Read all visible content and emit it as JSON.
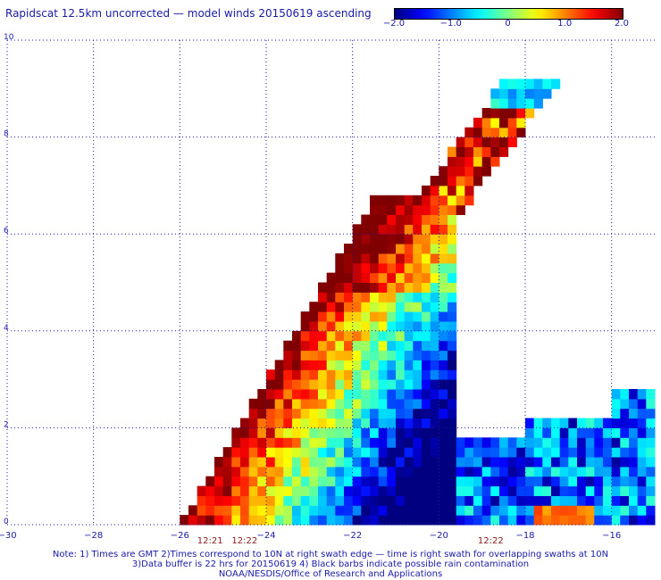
{
  "title": "Rapidscat 12.5km uncorrected — model winds 20150619 ascending",
  "colorbar": {
    "ticks": [
      {
        "value": -2.0,
        "label": "−2.0"
      },
      {
        "value": -1.0,
        "label": "−1.0"
      },
      {
        "value": 0,
        "label": "0"
      },
      {
        "value": 1.0,
        "label": "1.0"
      },
      {
        "value": 2.0,
        "label": "2.0"
      }
    ],
    "range": [
      -2.0,
      2.0
    ]
  },
  "notes": {
    "line1": "Note: 1) Times are GMT 2)Times correspond to 10N at right swath edge — time is right swath for overlapping swaths at 10N",
    "line2": "3)Data buffer is 22 hrs for 20150619 4) Black barbs indicate possible rain contamination",
    "line3": "NOAA/NESDIS/Office of Research and Applications"
  },
  "chart_data": {
    "type": "heatmap",
    "title": "Rapidscat 12.5km uncorrected — model winds 20150619 ascending",
    "xlabel": "",
    "ylabel": "",
    "xlim": [
      -30,
      -15
    ],
    "ylim": [
      0,
      10
    ],
    "grid": true,
    "x_ticks": [
      {
        "value": -30,
        "label": "−30"
      },
      {
        "value": -28,
        "label": "−28"
      },
      {
        "value": -26,
        "label": "−26"
      },
      {
        "value": -24,
        "label": "−24"
      },
      {
        "value": -22,
        "label": "−22"
      },
      {
        "value": -20,
        "label": "−20"
      },
      {
        "value": -18,
        "label": "−18"
      },
      {
        "value": -16,
        "label": "−16"
      }
    ],
    "y_ticks": [
      {
        "value": 0,
        "label": "0"
      },
      {
        "value": 2,
        "label": "2"
      },
      {
        "value": 4,
        "label": "4"
      },
      {
        "value": 6,
        "label": "6"
      },
      {
        "value": 8,
        "label": "8"
      },
      {
        "value": 10,
        "label": "10"
      }
    ],
    "time_labels": [
      {
        "lon": -25.3,
        "label": "12:21"
      },
      {
        "lon": -24.5,
        "label": "12:22"
      },
      {
        "lon": -18.8,
        "label": "12:22"
      }
    ],
    "colorbar_range": [
      -2.0,
      2.0
    ],
    "swath_regions": [
      {
        "name": "main",
        "lon_min": -26.0,
        "lon_max": -19.6,
        "lat_min": 0.0,
        "lat_max": 6.8,
        "mean": 0.2
      },
      {
        "name": "northeast_arm",
        "lon_min": -21.5,
        "lon_max": -18.3,
        "lat_min": 5.5,
        "lat_max": 9.1,
        "mean": 1.2
      },
      {
        "name": "east",
        "lon_min": -20.0,
        "lon_max": -15.0,
        "lat_min": 0.0,
        "lat_max": 2.9,
        "mean": -0.9
      }
    ]
  }
}
